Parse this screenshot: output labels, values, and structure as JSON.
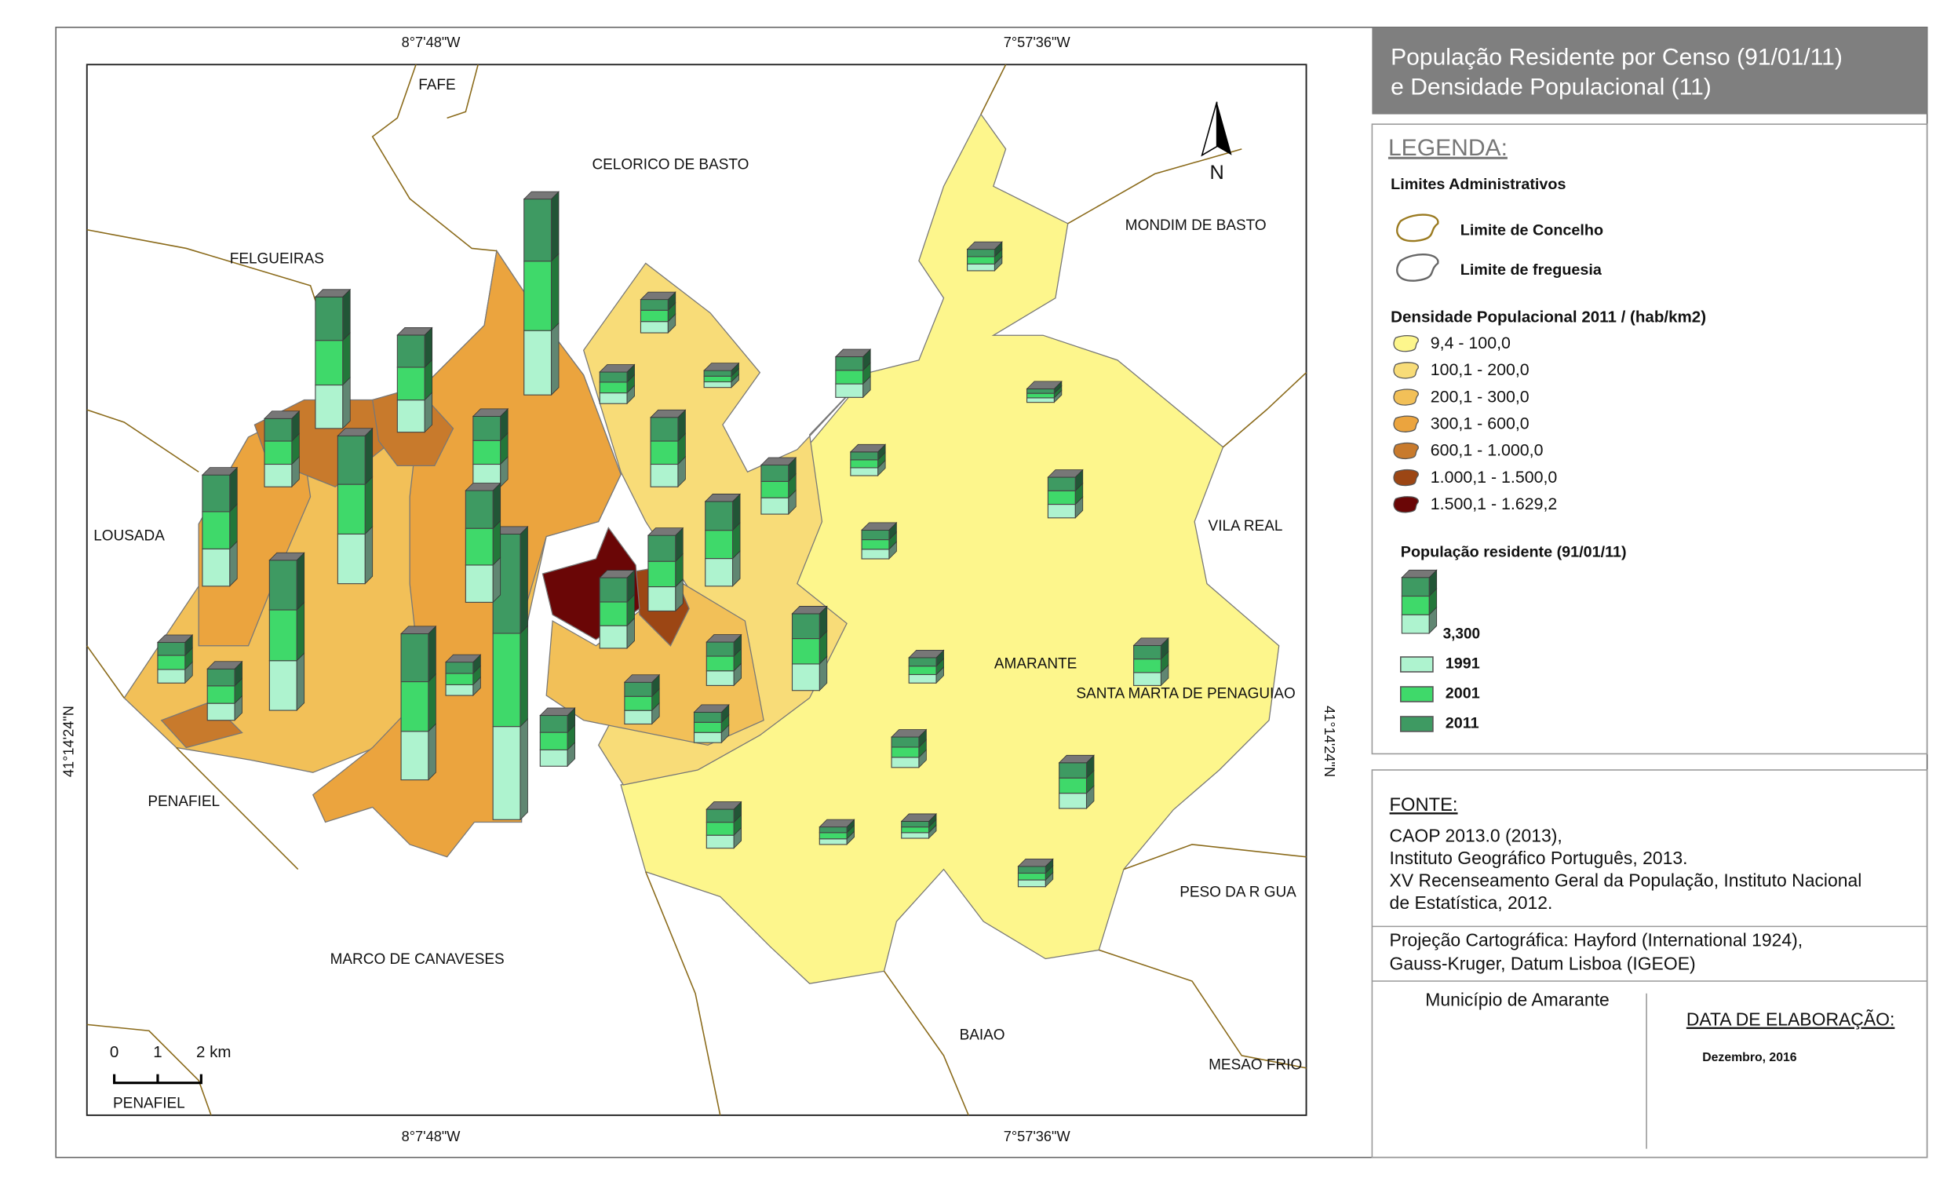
{
  "header": {
    "title_lines": [
      "População Residente por Censo (91/01/11)",
      "e Densidade Populacional (11)"
    ]
  },
  "legend": {
    "heading": "LEGENDA:",
    "admin_heading": "Limites Administrativos",
    "admin_items": [
      "Limite de Concelho",
      "Limite de freguesia"
    ],
    "density_heading": "Densidade Populacional 2011 / (hab/km2)",
    "density_classes": [
      {
        "label": "9,4 - 100,0",
        "color": "#fdf68c"
      },
      {
        "label": "100,1 - 200,0",
        "color": "#f8dc78"
      },
      {
        "label": "200,1 - 300,0",
        "color": "#f2c058"
      },
      {
        "label": "300,1 - 600,0",
        "color": "#eba43e"
      },
      {
        "label": "600,1 - 1.000,0",
        "color": "#c87a2c"
      },
      {
        "label": "1.000,1 - 1.500,0",
        "color": "#9c4614"
      },
      {
        "label": "1.500,1 - 1.629,2",
        "color": "#6a0606"
      }
    ],
    "population_heading": "População residente (91/01/11)",
    "population_reference": {
      "value": 3300,
      "label": "3,300"
    },
    "population_series": [
      {
        "name": "1991",
        "color": "#aef3cf"
      },
      {
        "name": "2001",
        "color": "#3fd96a"
      },
      {
        "name": "2011",
        "color": "#3e9a62"
      }
    ]
  },
  "map": {
    "north": "N",
    "lon_labels": [
      "8°7'48\"W",
      "7°57'36\"W"
    ],
    "lat_label": "41°14'24\"N",
    "place_labels": [
      "FAFE",
      "CELORICO DE BASTO",
      "MONDIM DE BASTO",
      "FELGUEIRAS",
      "LOUSADA",
      "VILA REAL",
      "AMARANTE",
      "SANTA MARTA DE PENAGUIAO",
      "PENAFIEL",
      "PESO DA R   GUA",
      "MARCO DE CANAVESES",
      "BAIAO",
      "MESAO FRIO"
    ],
    "scale_bar": [
      "0",
      "1",
      "2 km"
    ],
    "scale_inset_label": "PENAFIEL",
    "bars": [
      [
        11400,
        12300,
        11000
      ],
      [
        16500,
        16500,
        17600
      ],
      [
        7700,
        7900,
        7700
      ],
      [
        5700,
        5800,
        5700
      ],
      [
        8800,
        8800,
        8600
      ],
      [
        6600,
        6600,
        6500
      ],
      [
        8800,
        9000,
        8800
      ],
      [
        4000,
        4100,
        4000
      ],
      [
        4000,
        4200,
        4300
      ],
      [
        6600,
        6500,
        6700
      ],
      [
        8600,
        8800,
        8500
      ],
      [
        4900,
        5000,
        5100
      ],
      [
        4300,
        4500,
        4600
      ],
      [
        4000,
        4200,
        4300
      ],
      [
        4000,
        4100,
        4200
      ],
      [
        4700,
        4500,
        4400
      ],
      [
        2400,
        2500,
        2300
      ],
      [
        3000,
        3100,
        3000
      ],
      [
        1900,
        2000,
        2000
      ],
      [
        2900,
        3100,
        3000
      ],
      [
        2400,
        2500,
        2500
      ],
      [
        2600,
        2600,
        2500
      ],
      [
        1800,
        1800,
        1800
      ],
      [
        2000,
        2000,
        1900
      ],
      [
        1900,
        1900,
        1800
      ],
      [
        1000,
        1000,
        1000
      ],
      [
        2400,
        2400,
        2400
      ],
      [
        2900,
        2900,
        2900
      ],
      [
        1400,
        1400,
        1400
      ],
      [
        1700,
        1700,
        1700
      ],
      [
        1200,
        1300,
        1300
      ],
      [
        800,
        800,
        800
      ],
      [
        2400,
        2400,
        2400
      ],
      [
        1500,
        1500,
        1500
      ],
      [
        2300,
        2400,
        2400
      ],
      [
        2700,
        2700,
        2700
      ],
      [
        1800,
        1800,
        1800
      ],
      [
        2300,
        2300,
        2300
      ],
      [
        1000,
        1100,
        1000
      ],
      [
        1000,
        1000,
        1000
      ],
      [
        1200,
        1200,
        1200
      ]
    ]
  },
  "source": {
    "heading": "FONTE:",
    "lines": [
      "CAOP 2013.0 (2013),",
      "Instituto Geográfico Português, 2013.",
      "XV Recenseamento Geral da População, Instituto Nacional",
      "de Estatística, 2012."
    ]
  },
  "projection": [
    "Projeção Cartográfica: Hayford (International 1924),",
    "Gauss-Kruger, Datum Lisboa (IGEOE)"
  ],
  "municipality": "Município de Amarante",
  "date_heading": "DATA DE ELABORAÇÃO:",
  "date": "Dezembro, 2016"
}
